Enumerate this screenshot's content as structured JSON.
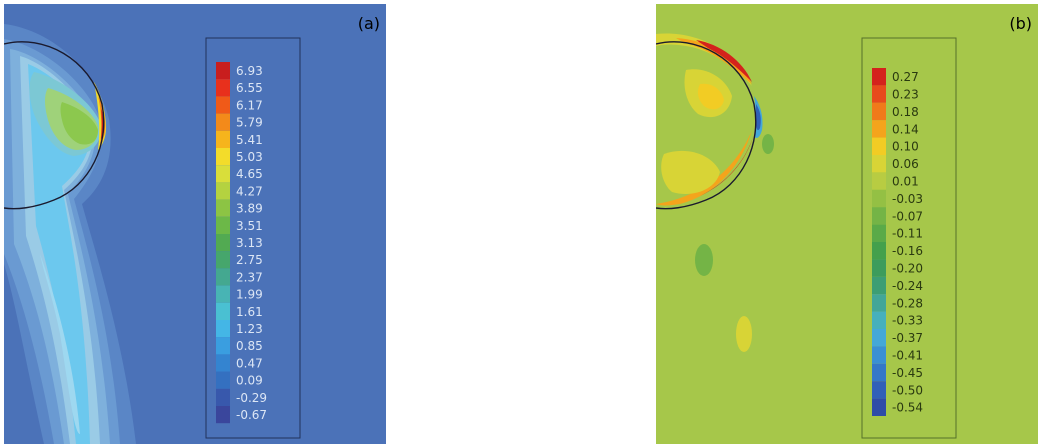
{
  "colors": {
    "background_a": "#4b72b8",
    "background_b": "#a6c74a",
    "interface_line": "#1a1a2e",
    "legend_text_a": "#dce6f5",
    "legend_text_b": "#2a3a10"
  },
  "panels": [
    {
      "label": "(a)",
      "legend": {
        "values": [
          "6.93",
          "6.55",
          "6.17",
          "5.79",
          "5.41",
          "5.03",
          "4.65",
          "4.27",
          "3.89",
          "3.51",
          "3.13",
          "2.75",
          "2.37",
          "1.99",
          "1.61",
          "1.23",
          "0.85",
          "0.47",
          "0.09",
          "-0.29",
          "-0.67"
        ],
        "colors": [
          "#c81e1e",
          "#e8301c",
          "#f05a18",
          "#f38a1a",
          "#f6b41c",
          "#f3dc2a",
          "#d9de3a",
          "#b4d240",
          "#8cc444",
          "#6cb848",
          "#52aa52",
          "#46a66c",
          "#44a890",
          "#48b4b4",
          "#4ac0d2",
          "#44b6e6",
          "#3a9ee0",
          "#3484d0",
          "#3470c0",
          "#3858ac",
          "#3a469c"
        ]
      }
    },
    {
      "label": "(b)",
      "legend": {
        "values": [
          "0.27",
          "0.23",
          "0.18",
          "0.14",
          "0.10",
          "0.06",
          "0.01",
          "-0.03",
          "-0.07",
          "-0.11",
          "-0.16",
          "-0.20",
          "-0.24",
          "-0.28",
          "-0.33",
          "-0.37",
          "-0.41",
          "-0.45",
          "-0.50",
          "-0.54"
        ],
        "colors": [
          "#d4221c",
          "#e84a1c",
          "#f07a1a",
          "#f4a41c",
          "#f2cc24",
          "#d8d436",
          "#b8cc42",
          "#94c044",
          "#74b446",
          "#5aaa48",
          "#44a04c",
          "#3c9c5c",
          "#3c9e74",
          "#42a698",
          "#46b0bc",
          "#44a8d8",
          "#3a90d4",
          "#3478c8",
          "#3060b8",
          "#2e4ca8"
        ]
      }
    }
  ]
}
